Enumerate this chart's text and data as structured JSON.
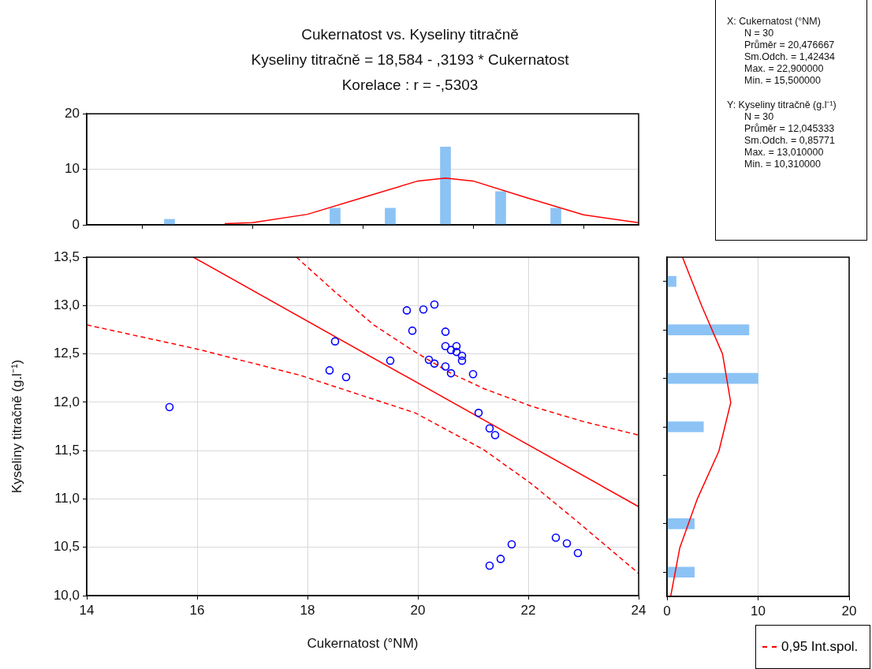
{
  "chart_data": [
    {
      "type": "scatter",
      "xlabel": "Cukernatost (°NM)",
      "ylabel": "Kyseliny titračně (g.l⁻¹)",
      "xlim": [
        14,
        24
      ],
      "xticks": [
        14,
        16,
        18,
        20,
        22,
        24
      ],
      "ylim": [
        10,
        13.5
      ],
      "yticks": [
        {
          "value": 10,
          "label": "10,0"
        },
        {
          "value": 10.5,
          "label": "10,5"
        },
        {
          "value": 11,
          "label": "11,0"
        },
        {
          "value": 11.5,
          "label": "11,5"
        },
        {
          "value": 12,
          "label": "12,0"
        },
        {
          "value": 12.5,
          "label": "12,5"
        },
        {
          "value": 13,
          "label": "13,0"
        },
        {
          "value": 13.5,
          "label": "13,5"
        }
      ],
      "grid": true,
      "legend": "bottom right",
      "series": [
        {
          "type": "scatter",
          "marker": "circle",
          "color": "#0000ff",
          "x": [
            19.8,
            20.1,
            20.3,
            19.9,
            20.5,
            18.5,
            20.5,
            20.7,
            20.6,
            20.7,
            20.8,
            20.8,
            19.5,
            20.2,
            20.3,
            20.5,
            20.6,
            21.0,
            18.4,
            18.7,
            15.5,
            21.1,
            21.3,
            21.4,
            21.7,
            21.5,
            21.3,
            22.5,
            22.7,
            22.9
          ],
          "values": [
            12.95,
            12.96,
            13.01,
            12.74,
            12.73,
            12.63,
            12.58,
            12.58,
            12.54,
            12.52,
            12.48,
            12.43,
            12.43,
            12.44,
            12.4,
            12.37,
            12.3,
            12.29,
            12.33,
            12.26,
            11.95,
            11.89,
            11.73,
            11.66,
            10.53,
            10.38,
            10.31,
            10.6,
            10.54,
            10.44
          ]
        },
        {
          "type": "line",
          "color": "#ff0000",
          "line_style": "solid",
          "x": [
            15.93,
            24
          ],
          "values": [
            13.5,
            10.92
          ]
        },
        {
          "type": "line",
          "name": "0,95 Int.spol.",
          "color": "#ff0000",
          "line_style": "dashed",
          "x": [
            17.8,
            18.5,
            19.2,
            19.95,
            20.6,
            21.2,
            22.05,
            23,
            24
          ],
          "values": [
            13.5,
            13.14,
            12.8,
            12.52,
            12.3,
            12.14,
            11.96,
            11.8,
            11.66
          ]
        },
        {
          "type": "line",
          "color": "#ff0000",
          "line_style": "dashed",
          "x": [
            14,
            16,
            17.86,
            19.95,
            21.19,
            22.05,
            22.86,
            24
          ],
          "values": [
            12.8,
            12.55,
            12.28,
            11.89,
            11.51,
            11.16,
            10.78,
            10.23
          ]
        }
      ]
    },
    {
      "type": "bar",
      "title": "Cukernatost vs. Kyseliny titračně",
      "subtitle": "Kyseliny titračně = 18,584 - ,3193  * Cukernatost",
      "annotations": [
        "Korelace :   r = -,5303"
      ],
      "xlim": [
        14,
        24
      ],
      "xticks": [
        {
          "value": 14,
          "label": null
        },
        {
          "value": 16,
          "label": null
        },
        {
          "value": 18,
          "label": null
        },
        {
          "value": 20,
          "label": null
        },
        {
          "value": 22,
          "label": null
        },
        {
          "value": 24,
          "label": null
        }
      ],
      "ylim": [
        0,
        20
      ],
      "yticks": [
        0,
        10,
        20
      ],
      "grid": "y",
      "tick_labels": "y",
      "series": [
        {
          "type": "bar",
          "color": "#8cc3f5",
          "x": [
            15.5,
            18.5,
            19.5,
            20.5,
            21.5,
            22.5
          ],
          "values": [
            1,
            3,
            3,
            14,
            6,
            3
          ]
        },
        {
          "type": "line",
          "color": "#ff0000",
          "line_style": "solid",
          "x": [
            16.5,
            17,
            18,
            19,
            20,
            20.5,
            21,
            22,
            23,
            24
          ],
          "values": [
            0.2,
            0.4,
            1.9,
            4.9,
            7.9,
            8.4,
            7.9,
            4.8,
            1.8,
            0.4
          ]
        }
      ]
    },
    {
      "type": "bar",
      "orientation": "horizontal",
      "xlim": [
        0,
        20
      ],
      "xticks": [
        0,
        10,
        20
      ],
      "ylim": [
        10,
        13.5
      ],
      "yticks": [
        {
          "value": 10,
          "label": null
        },
        {
          "value": 10.5,
          "label": null
        },
        {
          "value": 11,
          "label": null
        },
        {
          "value": 11.5,
          "label": null
        },
        {
          "value": 12,
          "label": null
        },
        {
          "value": 12.5,
          "label": null
        },
        {
          "value": 13,
          "label": null
        },
        {
          "value": 13.5,
          "label": null
        }
      ],
      "grid": "x",
      "tick_labels": "x",
      "series": [
        {
          "type": "bar",
          "color": "#8cc3f5",
          "x": [
            10.25,
            10.75,
            11.75,
            12.25,
            12.75,
            13.25
          ],
          "values": [
            3,
            3,
            4,
            10,
            9,
            1
          ]
        },
        {
          "type": "line",
          "color": "#ff0000",
          "line_style": "solid",
          "x": [
            10,
            10.5,
            11,
            11.5,
            12,
            12.5,
            13,
            13.5
          ],
          "values": [
            0.4,
            1.4,
            3.3,
            5.7,
            7,
            6.1,
            3.8,
            1.7
          ]
        }
      ]
    },
    {
      "type": "other",
      "annotations": [
        "X:  Cukernatost (°NM)",
        "N = 30",
        "Průměr = 20,476667",
        "Sm.Odch. = 1,42434",
        "Max. = 22,900000",
        "Min. = 15,500000",
        "Y:  Kyseliny titračně (g.l⁻¹)",
        "N = 30",
        "Průměr = 12,045333",
        "Sm.Odch. = 0,85771",
        "Max. = 13,010000",
        "Min. = 10,310000"
      ]
    }
  ]
}
